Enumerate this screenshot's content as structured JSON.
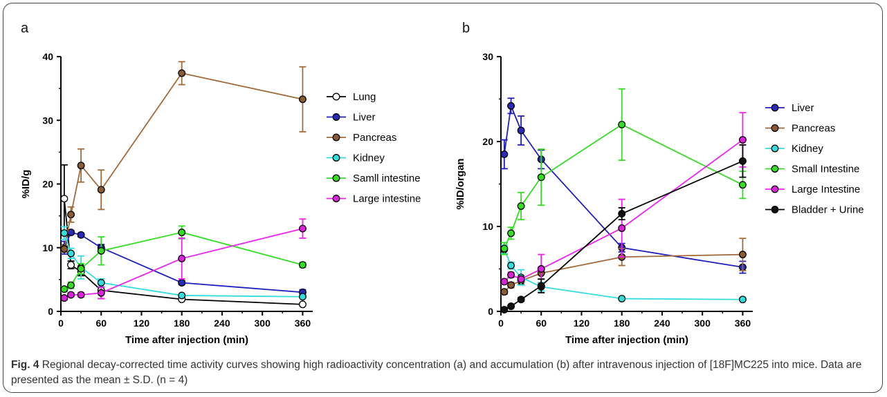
{
  "figure": {
    "caption_label": "Fig. 4",
    "caption_text": " Regional decay-corrected time activity curves showing high radioactivity concentration (a) and accumulation (b) after intravenous injection of [18F]MC225 into mice. Data are presented as the mean ± S.D. (n = 4)"
  },
  "chart_data": [
    {
      "type": "line",
      "panel_label": "a",
      "title": "",
      "xlabel": "Time after injection (min)",
      "ylabel": "%ID/g",
      "xlim": [
        0,
        375
      ],
      "ylim": [
        0,
        40
      ],
      "xticks": [
        0,
        60,
        120,
        180,
        240,
        300,
        360
      ],
      "yticks": [
        0,
        10,
        20,
        30,
        40
      ],
      "legend_position": "right",
      "series": [
        {
          "name": "Lung",
          "color": "#000000",
          "fill": "#ffffff",
          "x": [
            5,
            15,
            30,
            60,
            180,
            360
          ],
          "y": [
            17.7,
            7.3,
            6.2,
            3.3,
            1.9,
            1.1
          ],
          "err": [
            5.3,
            0.6,
            0.6,
            1.3,
            0.2,
            0.2
          ]
        },
        {
          "name": "Liver",
          "color": "#1f1fbf",
          "fill": "#2a2ab8",
          "x": [
            5,
            15,
            30,
            60,
            180,
            360
          ],
          "y": [
            10.0,
            12.4,
            12.0,
            10.0,
            4.5,
            3.0
          ],
          "err": [
            1.0,
            0.3,
            0.3,
            0.5,
            0.3,
            0.4
          ]
        },
        {
          "name": "Pancreas",
          "color": "#a06a3a",
          "fill": "#8a5a32",
          "x": [
            5,
            15,
            30,
            60,
            180,
            360
          ],
          "y": [
            9.8,
            15.2,
            22.9,
            19.1,
            37.4,
            33.3
          ],
          "err": [
            0.5,
            1.2,
            2.6,
            3.1,
            1.8,
            5.1
          ]
        },
        {
          "name": "Kidney",
          "color": "#33dddd",
          "fill": "#33dddd",
          "x": [
            5,
            15,
            30,
            60,
            180,
            360
          ],
          "y": [
            12.3,
            9.1,
            6.9,
            4.5,
            2.5,
            2.3
          ],
          "err": [
            1.0,
            0.8,
            1.8,
            0.6,
            0.2,
            0.2
          ]
        },
        {
          "name": "Samll intestine",
          "color": "#33dd22",
          "fill": "#33dd22",
          "x": [
            5,
            15,
            30,
            60,
            180,
            360
          ],
          "y": [
            3.5,
            4.1,
            6.7,
            9.5,
            12.4,
            7.3
          ],
          "err": [
            0.4,
            0.5,
            0.8,
            2.2,
            1.0,
            0.4
          ]
        },
        {
          "name": "Large intestine",
          "color": "#ee22ee",
          "fill": "#dd22dd",
          "x": [
            5,
            15,
            30,
            60,
            180,
            360
          ],
          "y": [
            2.1,
            2.6,
            2.6,
            2.9,
            8.3,
            13.0
          ],
          "err": [
            0.3,
            0.3,
            0.3,
            0.9,
            3.2,
            1.5
          ]
        }
      ]
    },
    {
      "type": "line",
      "panel_label": "b",
      "title": "",
      "xlabel": "Time after injection (min)",
      "ylabel": "%ID/organ",
      "xlim": [
        0,
        375
      ],
      "ylim": [
        0,
        30
      ],
      "xticks": [
        0,
        60,
        120,
        180,
        240,
        300,
        360
      ],
      "yticks": [
        0,
        10,
        20,
        30
      ],
      "legend_position": "right",
      "series": [
        {
          "name": "Liver",
          "color": "#1f1fbf",
          "fill": "#2a2ab8",
          "x": [
            5,
            15,
            30,
            60,
            180,
            360
          ],
          "y": [
            18.5,
            24.2,
            21.3,
            17.9,
            7.5,
            5.2
          ],
          "err": [
            1.7,
            0.9,
            1.7,
            1.1,
            0.5,
            0.7
          ]
        },
        {
          "name": "Pancreas",
          "color": "#a06a3a",
          "fill": "#8a5a32",
          "x": [
            5,
            15,
            30,
            60,
            180,
            360
          ],
          "y": [
            2.3,
            3.1,
            3.6,
            4.5,
            6.4,
            6.7
          ],
          "err": [
            0.3,
            0.3,
            0.4,
            0.7,
            1.0,
            1.9
          ]
        },
        {
          "name": "Kidney",
          "color": "#33dddd",
          "fill": "#33dddd",
          "x": [
            5,
            15,
            30,
            60,
            180,
            360
          ],
          "y": [
            7.3,
            5.4,
            4.0,
            2.9,
            1.5,
            1.4
          ],
          "err": [
            0.5,
            0.4,
            0.9,
            0.5,
            0.1,
            0.1
          ]
        },
        {
          "name": "Small Intestine",
          "color": "#33dd22",
          "fill": "#33dd22",
          "x": [
            5,
            15,
            30,
            60,
            180,
            360
          ],
          "y": [
            7.4,
            9.2,
            12.4,
            15.8,
            22.0,
            14.9
          ],
          "err": [
            0.7,
            0.7,
            1.6,
            3.3,
            4.2,
            1.6
          ]
        },
        {
          "name": "Large Intestine",
          "color": "#ee22ee",
          "fill": "#dd22dd",
          "x": [
            5,
            15,
            30,
            60,
            180,
            360
          ],
          "y": [
            3.5,
            4.3,
            3.8,
            5.0,
            9.8,
            20.2
          ],
          "err": [
            0.3,
            0.3,
            0.3,
            1.7,
            3.4,
            3.2
          ]
        },
        {
          "name": "Bladder + Urine",
          "color": "#000000",
          "fill": "#111111",
          "x": [
            5,
            15,
            30,
            60,
            180,
            360
          ],
          "y": [
            0.2,
            0.6,
            1.4,
            3.0,
            11.5,
            17.7
          ],
          "err": [
            0.1,
            0.1,
            0.2,
            0.8,
            0.7,
            1.9
          ]
        }
      ]
    }
  ]
}
